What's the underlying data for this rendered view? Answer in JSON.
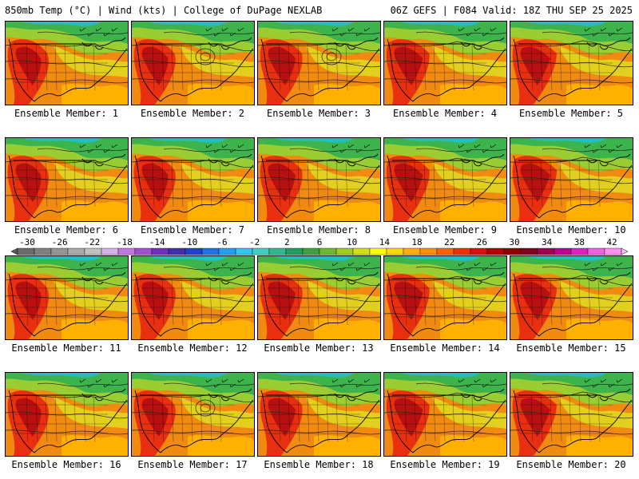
{
  "header": {
    "left": "850mb Temp (°C) | Wind (kts) | College of DuPage NEXLAB",
    "right": "06Z GEFS | F084 Valid: 18Z THU SEP 25 2025"
  },
  "member_label_prefix": "Ensemble Member:",
  "members": [
    "1",
    "2",
    "3",
    "4",
    "5",
    "6",
    "7",
    "8",
    "9",
    "10",
    "11",
    "12",
    "13",
    "14",
    "15",
    "16",
    "17",
    "18",
    "19",
    "20"
  ],
  "colorbar": {
    "ticks": [
      "-30",
      "-26",
      "-22",
      "-18",
      "-14",
      "-10",
      "-6",
      "-2",
      "2",
      "6",
      "10",
      "14",
      "18",
      "22",
      "26",
      "30",
      "34",
      "38",
      "42"
    ],
    "colors": [
      "#6b6b6b",
      "#808080",
      "#959595",
      "#aaaaaa",
      "#c0c0c0",
      "#d8b0e8",
      "#c078e0",
      "#a050d0",
      "#7030c0",
      "#4030b0",
      "#2040d0",
      "#2070e8",
      "#20a0f0",
      "#30c8f0",
      "#40d0c0",
      "#30b890",
      "#20a060",
      "#40a040",
      "#70b830",
      "#a0cc20",
      "#d0e010",
      "#ffff00",
      "#ffd800",
      "#ffb000",
      "#ff9000",
      "#ff6000",
      "#f03000",
      "#d81010",
      "#b80000",
      "#900000",
      "#800020",
      "#a00050",
      "#c00090",
      "#e020c0",
      "#f060e0",
      "#ff90f0"
    ]
  }
}
